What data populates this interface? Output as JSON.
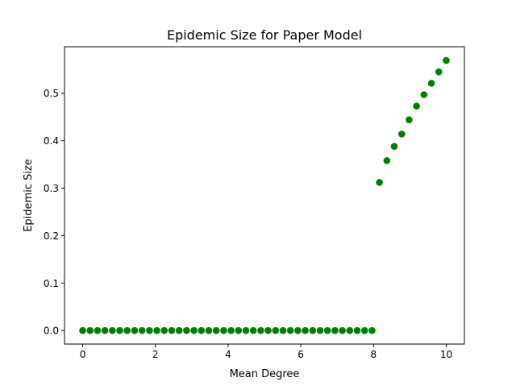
{
  "chart_data": {
    "type": "scatter",
    "title": "Epidemic Size for Paper Model",
    "xlabel": "Mean Degree",
    "ylabel": "Epidemic Size",
    "xlim": [
      -0.5,
      10.5
    ],
    "ylim": [
      -0.0285,
      0.598
    ],
    "xticks": [
      0,
      2,
      4,
      6,
      8,
      10
    ],
    "xtick_labels": [
      "0",
      "2",
      "4",
      "6",
      "8",
      "10"
    ],
    "yticks": [
      0.0,
      0.1,
      0.2,
      0.3,
      0.4,
      0.5
    ],
    "ytick_labels": [
      "0.0",
      "0.1",
      "0.2",
      "0.3",
      "0.4",
      "0.5"
    ],
    "grid": false,
    "legend": "none",
    "marker_color": "#008000",
    "series": [
      {
        "x": [
          0.0,
          0.204,
          0.408,
          0.612,
          0.816,
          1.02,
          1.224,
          1.429,
          1.633,
          1.837,
          2.041,
          2.245,
          2.449,
          2.653,
          2.857,
          3.061,
          3.265,
          3.469,
          3.673,
          3.878,
          4.082,
          4.286,
          4.49,
          4.694,
          4.898,
          5.102,
          5.306,
          5.51,
          5.714,
          5.918,
          6.122,
          6.327,
          6.531,
          6.735,
          6.939,
          7.143,
          7.347,
          7.551,
          7.755,
          7.959,
          8.163,
          8.367,
          8.571,
          8.776,
          8.98,
          9.184,
          9.388,
          9.592,
          9.796,
          10.0
        ],
        "y": [
          0.0,
          0.0,
          0.0,
          0.0,
          0.0,
          0.0,
          0.0,
          0.0,
          0.0,
          0.0,
          0.0,
          0.0,
          0.0,
          0.0,
          0.0,
          0.0,
          0.0,
          0.0,
          0.0,
          0.0,
          0.0,
          0.0,
          0.0,
          0.0,
          0.0,
          0.0,
          0.0,
          0.0,
          0.0,
          0.0,
          0.0,
          0.0,
          0.0,
          0.0,
          0.0,
          0.0,
          0.0,
          0.0,
          0.0,
          0.0,
          0.312,
          0.358,
          0.388,
          0.414,
          0.444,
          0.473,
          0.497,
          0.521,
          0.545,
          0.569
        ]
      }
    ]
  }
}
